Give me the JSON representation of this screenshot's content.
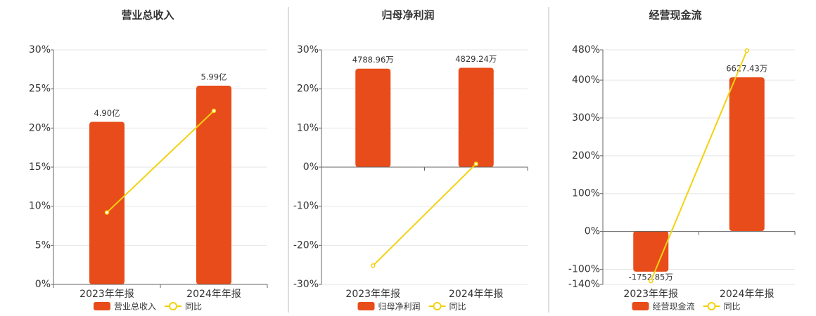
{
  "chart_data": [
    {
      "type": "combo",
      "title": "营业总收入",
      "categories": [
        "2023年年报",
        "2024年年报"
      ],
      "series": [
        {
          "name": "营业总收入",
          "type": "bar",
          "axis": "y2",
          "color": "#e84c1a",
          "values": [
            4.9,
            5.99
          ],
          "value_labels": [
            "4.90亿",
            "5.99亿"
          ]
        },
        {
          "name": "同比",
          "type": "line",
          "color": "#f2d20f",
          "values": [
            9.2,
            22.2
          ]
        }
      ],
      "ylim": [
        0,
        30
      ],
      "yticks": [
        {
          "value": 0,
          "label": "0%"
        },
        {
          "value": 5,
          "label": "5%"
        },
        {
          "value": 10,
          "label": "10%"
        },
        {
          "value": 15,
          "label": "15%"
        },
        {
          "value": 20,
          "label": "20%"
        },
        {
          "value": 25,
          "label": "25%"
        },
        {
          "value": 30,
          "label": "30%"
        }
      ],
      "y2lim": [
        0,
        7.07
      ],
      "grid": true
    },
    {
      "type": "combo",
      "title": "归母净利润",
      "categories": [
        "2023年年报",
        "2024年年报"
      ],
      "series": [
        {
          "name": "归母净利润",
          "type": "bar",
          "axis": "y2",
          "color": "#e84c1a",
          "values": [
            4788.96,
            4829.24
          ],
          "value_labels": [
            "4788.96万",
            "4829.24万"
          ]
        },
        {
          "name": "同比",
          "type": "line",
          "color": "#f2d20f",
          "values": [
            -25.2,
            0.84
          ]
        }
      ],
      "ylim": [
        -30,
        30
      ],
      "yticks": [
        {
          "value": -30,
          "label": "-30%"
        },
        {
          "value": -20,
          "label": "-20%"
        },
        {
          "value": -10,
          "label": "-10%"
        },
        {
          "value": 0,
          "label": "0%"
        },
        {
          "value": 10,
          "label": "10%"
        },
        {
          "value": 20,
          "label": "20%"
        },
        {
          "value": 30,
          "label": "30%"
        }
      ],
      "y2lim": [
        -5700,
        5700
      ],
      "grid": true
    },
    {
      "type": "combo",
      "title": "经营现金流",
      "categories": [
        "2023年年报",
        "2024年年报"
      ],
      "series": [
        {
          "name": "经营现金流",
          "type": "bar",
          "axis": "y2",
          "color": "#e84c1a",
          "values": [
            -1752.85,
            6627.43
          ],
          "value_labels": [
            "-1752.85万",
            "6627.43万"
          ]
        },
        {
          "name": "同比",
          "type": "line",
          "color": "#f2d20f",
          "values": [
            -131,
            478
          ]
        }
      ],
      "ylim": [
        -140,
        480
      ],
      "yticks": [
        {
          "value": -140,
          "label": "-140%"
        },
        {
          "value": -100,
          "label": "-100%"
        },
        {
          "value": 0,
          "label": "0%"
        },
        {
          "value": 100,
          "label": "100%"
        },
        {
          "value": 200,
          "label": "200%"
        },
        {
          "value": 300,
          "label": "300%"
        },
        {
          "value": 400,
          "label": "400%"
        },
        {
          "value": 480,
          "label": "480%"
        }
      ],
      "y2lim": [
        -2300,
        7810
      ],
      "grid": true
    }
  ]
}
